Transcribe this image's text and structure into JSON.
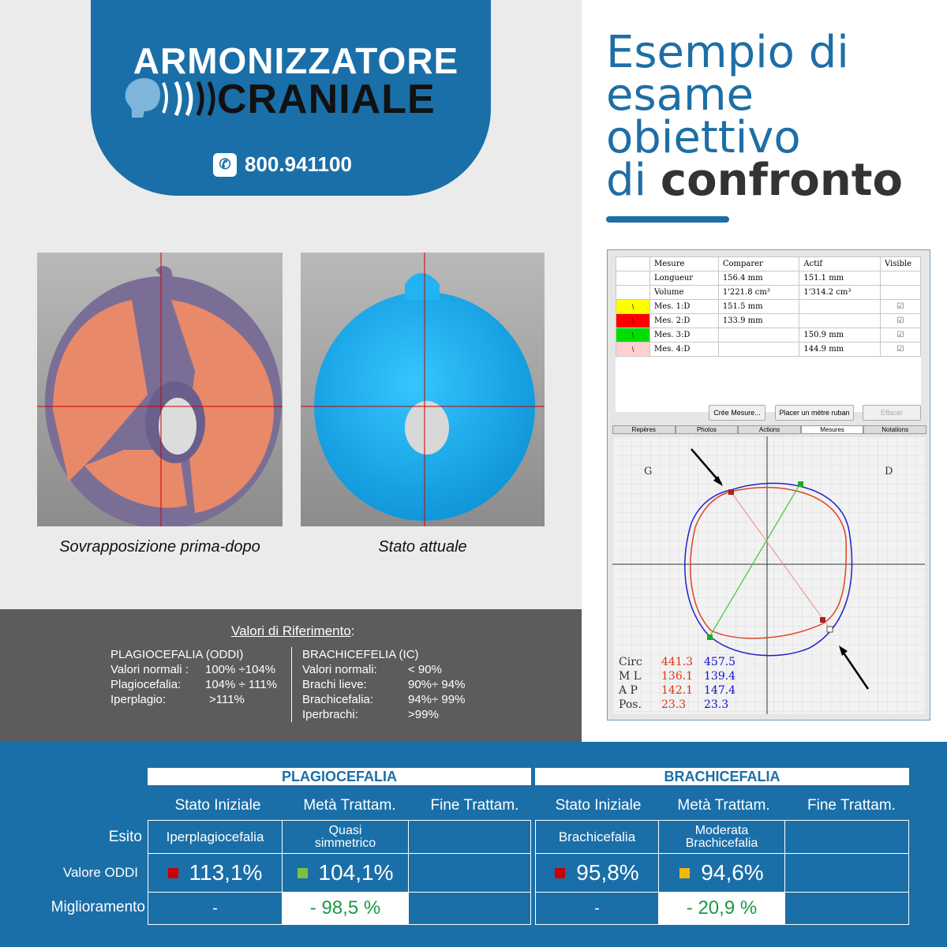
{
  "logo": {
    "line1": "ARMONIZZATORE",
    "line2": "CRANIALE",
    "phone": "800.941100"
  },
  "title": {
    "line1": "Esempio di",
    "line2": "esame",
    "line3": "obiettivo",
    "line4_normal": "di ",
    "line4_bold": "confronto"
  },
  "scans": {
    "caption_left": "Sovrapposizione prima-dopo",
    "caption_right": "Stato attuale"
  },
  "reference": {
    "heading": "Valori di Riferimento",
    "heading_colon": ":",
    "plagio": {
      "title": "PLAGIOCEFALIA (ODDI)",
      "rows": [
        {
          "label": "Valori normali :",
          "value": "100% ÷104%"
        },
        {
          "label": "Plagiocefalia:",
          "value": "104% ÷ 111%"
        },
        {
          "label": "Iperplagio:",
          "value": ">111%"
        }
      ]
    },
    "brachi": {
      "title": "BRACHICEFELIA (IC)",
      "rows": [
        {
          "label": "Valori normali:",
          "value": "< 90%"
        },
        {
          "label": "Brachi lieve:",
          "value": "90%÷ 94%"
        },
        {
          "label": "Brachicefalia:",
          "value": "94%÷ 99%"
        },
        {
          "label": "Iperbrachi:",
          "value": ">99%"
        }
      ]
    }
  },
  "app": {
    "headers": [
      "Mesure",
      "Comparer",
      "Actif",
      "Visible"
    ],
    "rows": [
      {
        "name": "Longueur",
        "comparer": "156.4 mm",
        "actif": "151.1 mm",
        "color": "",
        "check": false
      },
      {
        "name": "Volume",
        "comparer": "1'221.8 cm³",
        "actif": "1'314.2 cm³",
        "color": "",
        "check": false
      },
      {
        "name": "Mes. 1:D",
        "comparer": "151.5 mm",
        "actif": "",
        "color": "#ffff00",
        "check": true
      },
      {
        "name": "Mes. 2:D",
        "comparer": "133.9 mm",
        "actif": "",
        "color": "#ff0000",
        "check": true
      },
      {
        "name": "Mes. 3:D",
        "comparer": "",
        "actif": "150.9 mm",
        "color": "#00dd00",
        "check": true
      },
      {
        "name": "Mes. 4:D",
        "comparer": "",
        "actif": "144.9 mm",
        "color": "#ffd0d0",
        "check": true
      }
    ],
    "buttons": {
      "create": "Crée Mesure...",
      "tape": "Placer un mètre ruban",
      "clear": "Effacer"
    },
    "tabs": [
      "Repères",
      "Photos",
      "Actions",
      "Mesures",
      "Notations"
    ],
    "plot_labels": {
      "left": "G",
      "right": "D"
    },
    "stats": [
      {
        "label": "Circ",
        "red": "441.3",
        "blue": "457.5"
      },
      {
        "label": "M L",
        "red": "136.1",
        "blue": "139.4"
      },
      {
        "label": "A P",
        "red": "142.1",
        "blue": "147.4"
      },
      {
        "label": "Pos.",
        "red": "23.3",
        "blue": "23.3"
      }
    ]
  },
  "results": {
    "group_plagio": "PLAGIOCEFALIA",
    "group_brachi": "BRACHICEFALIA",
    "col_headers": [
      "Stato Iniziale",
      "Metà Trattam.",
      "Fine Trattam."
    ],
    "row_labels": [
      "Esito",
      "Valore ODDI",
      "Miglioramento"
    ],
    "plagio": {
      "esito": [
        "Iperplagiocefalia",
        "Quasi simmetrico",
        ""
      ],
      "valori": [
        "113,1%",
        "104,1%",
        ""
      ],
      "miglioramento": [
        "-",
        "- 98,5 %",
        ""
      ]
    },
    "brachi": {
      "esito": [
        "Brachicefalia",
        "Moderata Brachicefalia",
        ""
      ],
      "valori": [
        "95,8%",
        "94,6%",
        ""
      ],
      "miglioramento": [
        "-",
        "- 20,9 %",
        ""
      ]
    },
    "colors": {
      "red": "#cc0000",
      "green": "#7ac143",
      "yellow": "#f5b800"
    }
  }
}
